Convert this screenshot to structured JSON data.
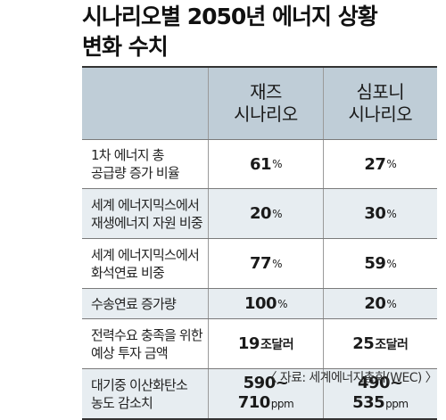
{
  "title": {
    "line1": "시나리오별 2050년 에너지 상황",
    "line2": "변화 수치"
  },
  "header": {
    "col1_line1": "재즈",
    "col1_line2": "시나리오",
    "col2_line1": "심포니",
    "col2_line2": "시나리오"
  },
  "rows": [
    {
      "label1": "1차 에너지 총",
      "label2": "공급량 증가 비율",
      "v1": "61",
      "u1": "%",
      "v2": "27",
      "u2": "%"
    },
    {
      "label1": "세계 에너지믹스에서",
      "label2": "재생에너지 자원 비중",
      "v1": "20",
      "u1": "%",
      "v2": "30",
      "u2": "%"
    },
    {
      "label1": "세계 에너지믹스에서",
      "label2": "화석연료 비중",
      "v1": "77",
      "u1": "%",
      "v2": "59",
      "u2": "%"
    },
    {
      "label1": "수송연료 증가량",
      "v1": "100",
      "u1": "%",
      "v2": "20",
      "u2": "%"
    },
    {
      "label1": "전력수요 충족을 위한",
      "label2": "예상 투자 금액",
      "v1": "19",
      "u1": "조달러",
      "v2": "25",
      "u2": "조달러"
    },
    {
      "label1": "대기중 이산화탄소",
      "label2": "농도 감소치",
      "v1a": "590~",
      "v1b": "710",
      "u1": "ppm",
      "v2a": "490~",
      "v2b": "535",
      "u2": "ppm"
    }
  ],
  "source": "〈 자료: 세계에너지총회(WEC) 〉"
}
